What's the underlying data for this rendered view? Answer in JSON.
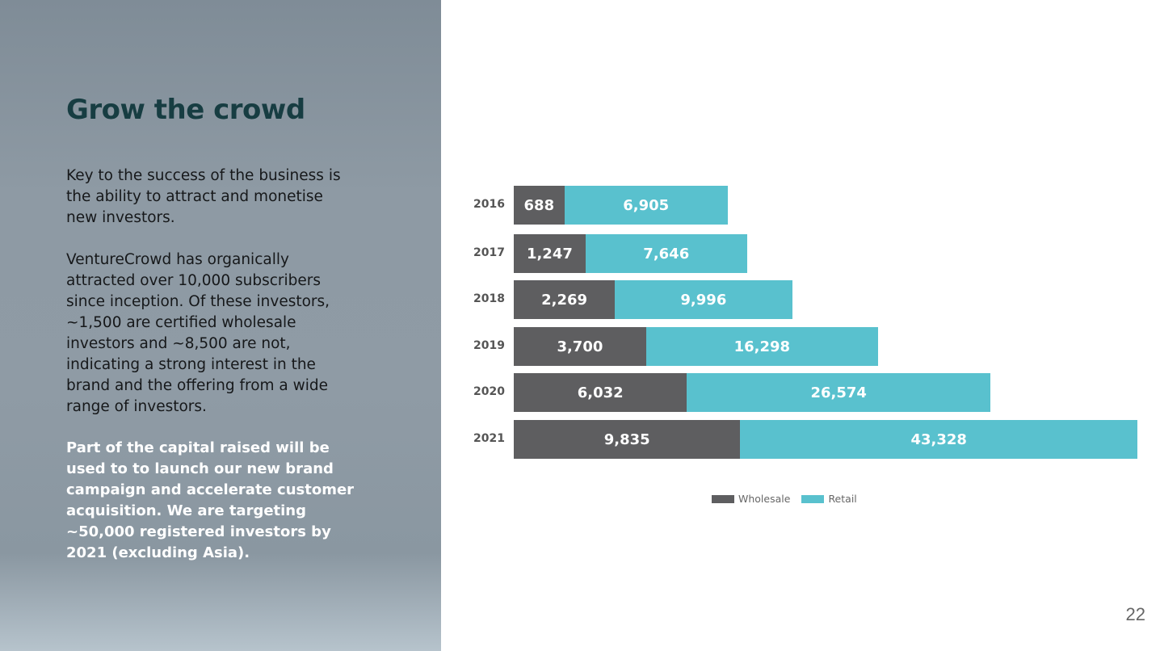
{
  "slide": {
    "title": "Grow the crowd",
    "paragraph1": [
      "Key to the success of the business is",
      "the ability to attract and monetise",
      "new investors."
    ],
    "paragraph2": [
      "VentureCrowd has organically",
      "attracted over 10,000 subscribers",
      "since inception. Of these investors,",
      "~1,500 are certified wholesale",
      "investors and ~8,500 are not,",
      "indicating a strong interest in the",
      "brand and the offering from a wide",
      "range of investors."
    ],
    "paragraph3": [
      "Part of the capital raised will be",
      "used to to launch our new brand",
      "campaign and accelerate customer",
      "acquisition. We are targeting",
      "~50,000 registered investors by",
      "2021 (excluding Asia)."
    ],
    "page_number": "22"
  },
  "chart_data": {
    "type": "bar",
    "orientation": "horizontal",
    "stacked": true,
    "categories": [
      "2016",
      "2017",
      "2018",
      "2019",
      "2020",
      "2021"
    ],
    "series": [
      {
        "name": "Wholesale",
        "color": "#5e5e60",
        "values": [
          688,
          1247,
          2269,
          3700,
          6032,
          9835
        ],
        "labels": [
          "688",
          "1,247",
          "2,269",
          "3,700",
          "6,032",
          "9,835"
        ]
      },
      {
        "name": "Retail",
        "color": "#59c1ce",
        "values": [
          6905,
          7646,
          9996,
          16298,
          26574,
          43328
        ],
        "labels": [
          "6,905",
          "7,646",
          "9,996",
          "16,298",
          "26,574",
          "43,328"
        ]
      }
    ],
    "legend": "bottom",
    "grid": false
  }
}
